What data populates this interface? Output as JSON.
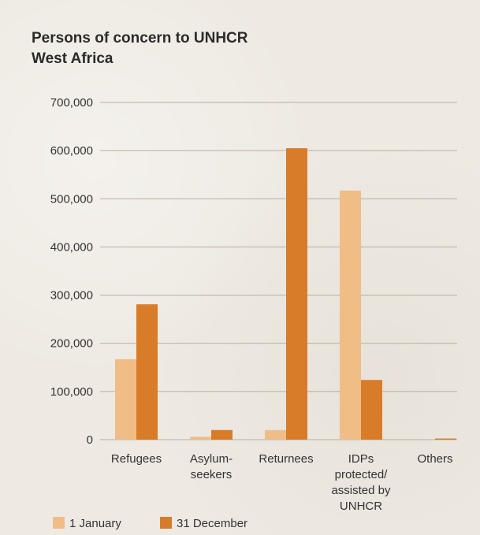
{
  "chart_data": {
    "type": "bar",
    "title": "Persons of concern to UNHCR",
    "subtitle": "West Africa",
    "categories": [
      [
        "Refugees"
      ],
      [
        "Asylum-",
        "seekers"
      ],
      [
        "Returnees"
      ],
      [
        "IDPs",
        "protected/",
        "assisted by",
        "UNHCR"
      ],
      [
        "Others"
      ]
    ],
    "series": [
      {
        "name": "1 January",
        "color": "#f0bd87",
        "values": [
          167000,
          6000,
          20000,
          517000,
          0
        ]
      },
      {
        "name": "31 December",
        "color": "#d97c29",
        "values": [
          281000,
          20000,
          605000,
          124000,
          2000
        ]
      }
    ],
    "ylim": [
      0,
      700000
    ],
    "yticks": [
      "0",
      "100,000",
      "200,000",
      "300,000",
      "400,000",
      "500,000",
      "600,000",
      "700,000"
    ],
    "grid": true,
    "legend": "bottom"
  }
}
